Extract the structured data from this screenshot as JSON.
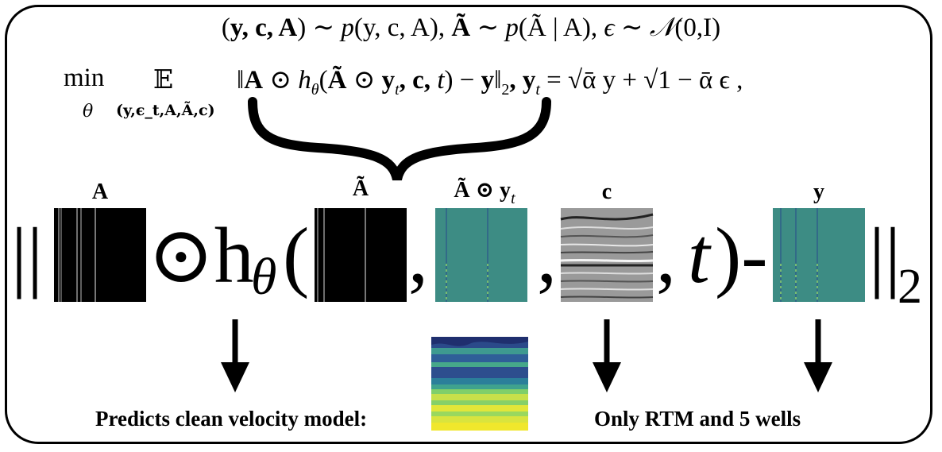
{
  "equations": {
    "sampling": {
      "p1": "(",
      "y": "y",
      "c1": ", c, ",
      "A": "A",
      "p2": ") ∼ ",
      "p": "p",
      "args": "(y, c, A)",
      "sep": ", ",
      "Atilde": "Ã",
      "sim2": " ∼ ",
      "p_b": "p",
      "args2": "(Ã | A)",
      "sep2": ", ",
      "eps": "ϵ",
      "sim3": " ∼ ",
      "normal": "𝒩",
      "args3": "(0,I)"
    },
    "objective": {
      "min": "min",
      "min_sub": "θ",
      "expect": "𝔼",
      "expect_sub": "(y,ϵ_t,A,Ã,c)",
      "norm_expr": "‖A ⊙ hθ(Ã ⊙ yt, c, t) − y‖₂",
      "norm_open": "‖",
      "A": "A",
      "odot": " ⊙ ",
      "h": "h",
      "theta": "θ",
      "inner_open": "(",
      "Atilde": "Ã",
      "odot2": " ⊙ ",
      "y": "y",
      "t": "t",
      "rest": ", c, ",
      "t2": "t",
      "inner_close": ") − ",
      "y2": "y",
      "norm_close": "‖",
      "norm_sub": "2",
      "yt_def": ", y",
      "yt_sub": "t",
      "eq_rhs": " = √ᾱ y + √1 − ᾱ ϵ ,"
    }
  },
  "labels": {
    "A": "A",
    "Atilde": "Ã",
    "Atilde_odot_yt": "Ã ⊙ y",
    "Atilde_odot_yt_sub": "t",
    "c": "c",
    "y": "y"
  },
  "big_expression": {
    "norm_open": "||",
    "odot_h": "⊙h",
    "theta": "θ",
    "paren": "(",
    "comma1": ",",
    "comma2": ",",
    "comma3": ", ",
    "t": "t",
    "close_minus": ")-",
    "norm_close": "||",
    "sub": "2"
  },
  "captions": {
    "left": "Predicts clean velocity model:",
    "right": "Only RTM and 5 wells"
  },
  "colors": {
    "mask": "#000000",
    "wells_bg": "#3d8c84",
    "rtm_bg": "#9a9a9a"
  },
  "icons": [
    "down-arrow-icon",
    "curly-brace-icon"
  ]
}
